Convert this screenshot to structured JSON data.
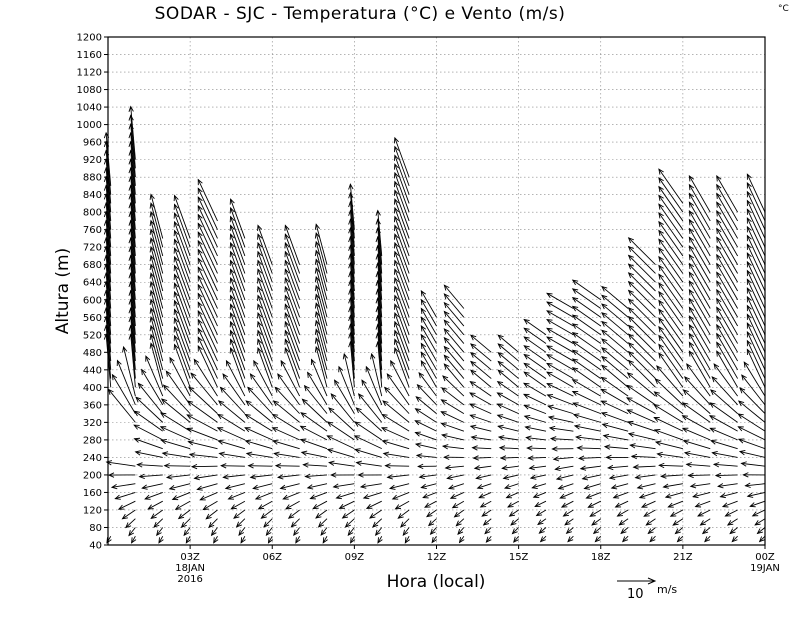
{
  "chart_data": {
    "type": "wind-barb-profile",
    "title": "SODAR - SJC - Temperatura (°C) e Vento (m/s)",
    "corner_unit": "°C",
    "xlabel": "Hora (local)",
    "ylabel": "Altura (m)",
    "ylim": [
      40,
      1200
    ],
    "y_ticks": [
      40,
      80,
      120,
      160,
      200,
      240,
      280,
      320,
      360,
      400,
      440,
      480,
      520,
      560,
      600,
      640,
      680,
      720,
      760,
      800,
      840,
      880,
      920,
      960,
      1000,
      1040,
      1080,
      1120,
      1160,
      1200
    ],
    "xlim_hours": [
      0,
      24
    ],
    "x_ticks": [
      {
        "hour": 3,
        "label": "03Z",
        "sub1": "18JAN",
        "sub2": "2016"
      },
      {
        "hour": 6,
        "label": "06Z"
      },
      {
        "hour": 9,
        "label": "09Z"
      },
      {
        "hour": 12,
        "label": "12Z"
      },
      {
        "hour": 15,
        "label": "15Z"
      },
      {
        "hour": 18,
        "label": "18Z"
      },
      {
        "hour": 21,
        "label": "21Z"
      },
      {
        "hour": 24,
        "label": "00Z",
        "sub1": "19JAN"
      }
    ],
    "grid": true,
    "legend": {
      "label": "10",
      "unit": "m/s",
      "reference_speed": 10
    },
    "profiles": [
      {
        "hour": 0.1,
        "top": 860,
        "low_speed": 2,
        "high_speed": 14,
        "low_dir": 240,
        "high_dir": 95
      },
      {
        "hour": 1.0,
        "top": 920,
        "low_speed": 2,
        "high_speed": 14,
        "low_dir": 240,
        "high_dir": 95
      },
      {
        "hour": 2.0,
        "top": 740,
        "low_speed": 2,
        "high_speed": 12,
        "low_dir": 240,
        "high_dir": 105
      },
      {
        "hour": 3.0,
        "top": 740,
        "low_speed": 2,
        "high_speed": 12,
        "low_dir": 240,
        "high_dir": 110
      },
      {
        "hour": 4.0,
        "top": 780,
        "low_speed": 2,
        "high_speed": 12,
        "low_dir": 240,
        "high_dir": 115
      },
      {
        "hour": 5.0,
        "top": 740,
        "low_speed": 2,
        "high_speed": 11,
        "low_dir": 240,
        "high_dir": 110
      },
      {
        "hour": 6.0,
        "top": 680,
        "low_speed": 2,
        "high_speed": 11,
        "low_dir": 240,
        "high_dir": 110
      },
      {
        "hour": 7.0,
        "top": 680,
        "low_speed": 2,
        "high_speed": 11,
        "low_dir": 240,
        "high_dir": 110
      },
      {
        "hour": 8.0,
        "top": 680,
        "low_speed": 2,
        "high_speed": 11,
        "low_dir": 240,
        "high_dir": 105
      },
      {
        "hour": 9.0,
        "top": 760,
        "low_speed": 2,
        "high_speed": 12,
        "low_dir": 240,
        "high_dir": 95
      },
      {
        "hour": 10.0,
        "top": 700,
        "low_speed": 2,
        "high_speed": 12,
        "low_dir": 240,
        "high_dir": 95
      },
      {
        "hour": 11.0,
        "top": 880,
        "low_speed": 2,
        "high_speed": 11,
        "low_dir": 240,
        "high_dir": 110
      },
      {
        "hour": 12.0,
        "top": 560,
        "low_speed": 2,
        "high_speed": 8,
        "low_dir": 235,
        "high_dir": 120
      },
      {
        "hour": 13.0,
        "top": 580,
        "low_speed": 2,
        "high_speed": 8,
        "low_dir": 235,
        "high_dir": 130
      },
      {
        "hour": 14.0,
        "top": 480,
        "low_speed": 2,
        "high_speed": 7,
        "low_dir": 230,
        "high_dir": 140
      },
      {
        "hour": 15.0,
        "top": 480,
        "low_speed": 2,
        "high_speed": 7,
        "low_dir": 230,
        "high_dir": 140
      },
      {
        "hour": 16.0,
        "top": 520,
        "low_speed": 2,
        "high_speed": 7,
        "low_dir": 225,
        "high_dir": 145
      },
      {
        "hour": 17.0,
        "top": 580,
        "low_speed": 2,
        "high_speed": 8,
        "low_dir": 225,
        "high_dir": 150
      },
      {
        "hour": 18.0,
        "top": 600,
        "low_speed": 2,
        "high_speed": 9,
        "low_dir": 225,
        "high_dir": 145
      },
      {
        "hour": 19.0,
        "top": 580,
        "low_speed": 2,
        "high_speed": 9,
        "low_dir": 225,
        "high_dir": 140
      },
      {
        "hour": 20.0,
        "top": 680,
        "low_speed": 2,
        "high_speed": 10,
        "low_dir": 225,
        "high_dir": 135
      },
      {
        "hour": 21.0,
        "top": 820,
        "low_speed": 2,
        "high_speed": 11,
        "low_dir": 225,
        "high_dir": 125
      },
      {
        "hour": 22.0,
        "top": 800,
        "low_speed": 2,
        "high_speed": 11,
        "low_dir": 225,
        "high_dir": 120
      },
      {
        "hour": 23.0,
        "top": 800,
        "low_speed": 2,
        "high_speed": 11,
        "low_dir": 225,
        "high_dir": 120
      },
      {
        "hour": 24.0,
        "top": 800,
        "low_speed": 2,
        "high_speed": 11,
        "low_dir": 225,
        "high_dir": 115
      }
    ]
  }
}
